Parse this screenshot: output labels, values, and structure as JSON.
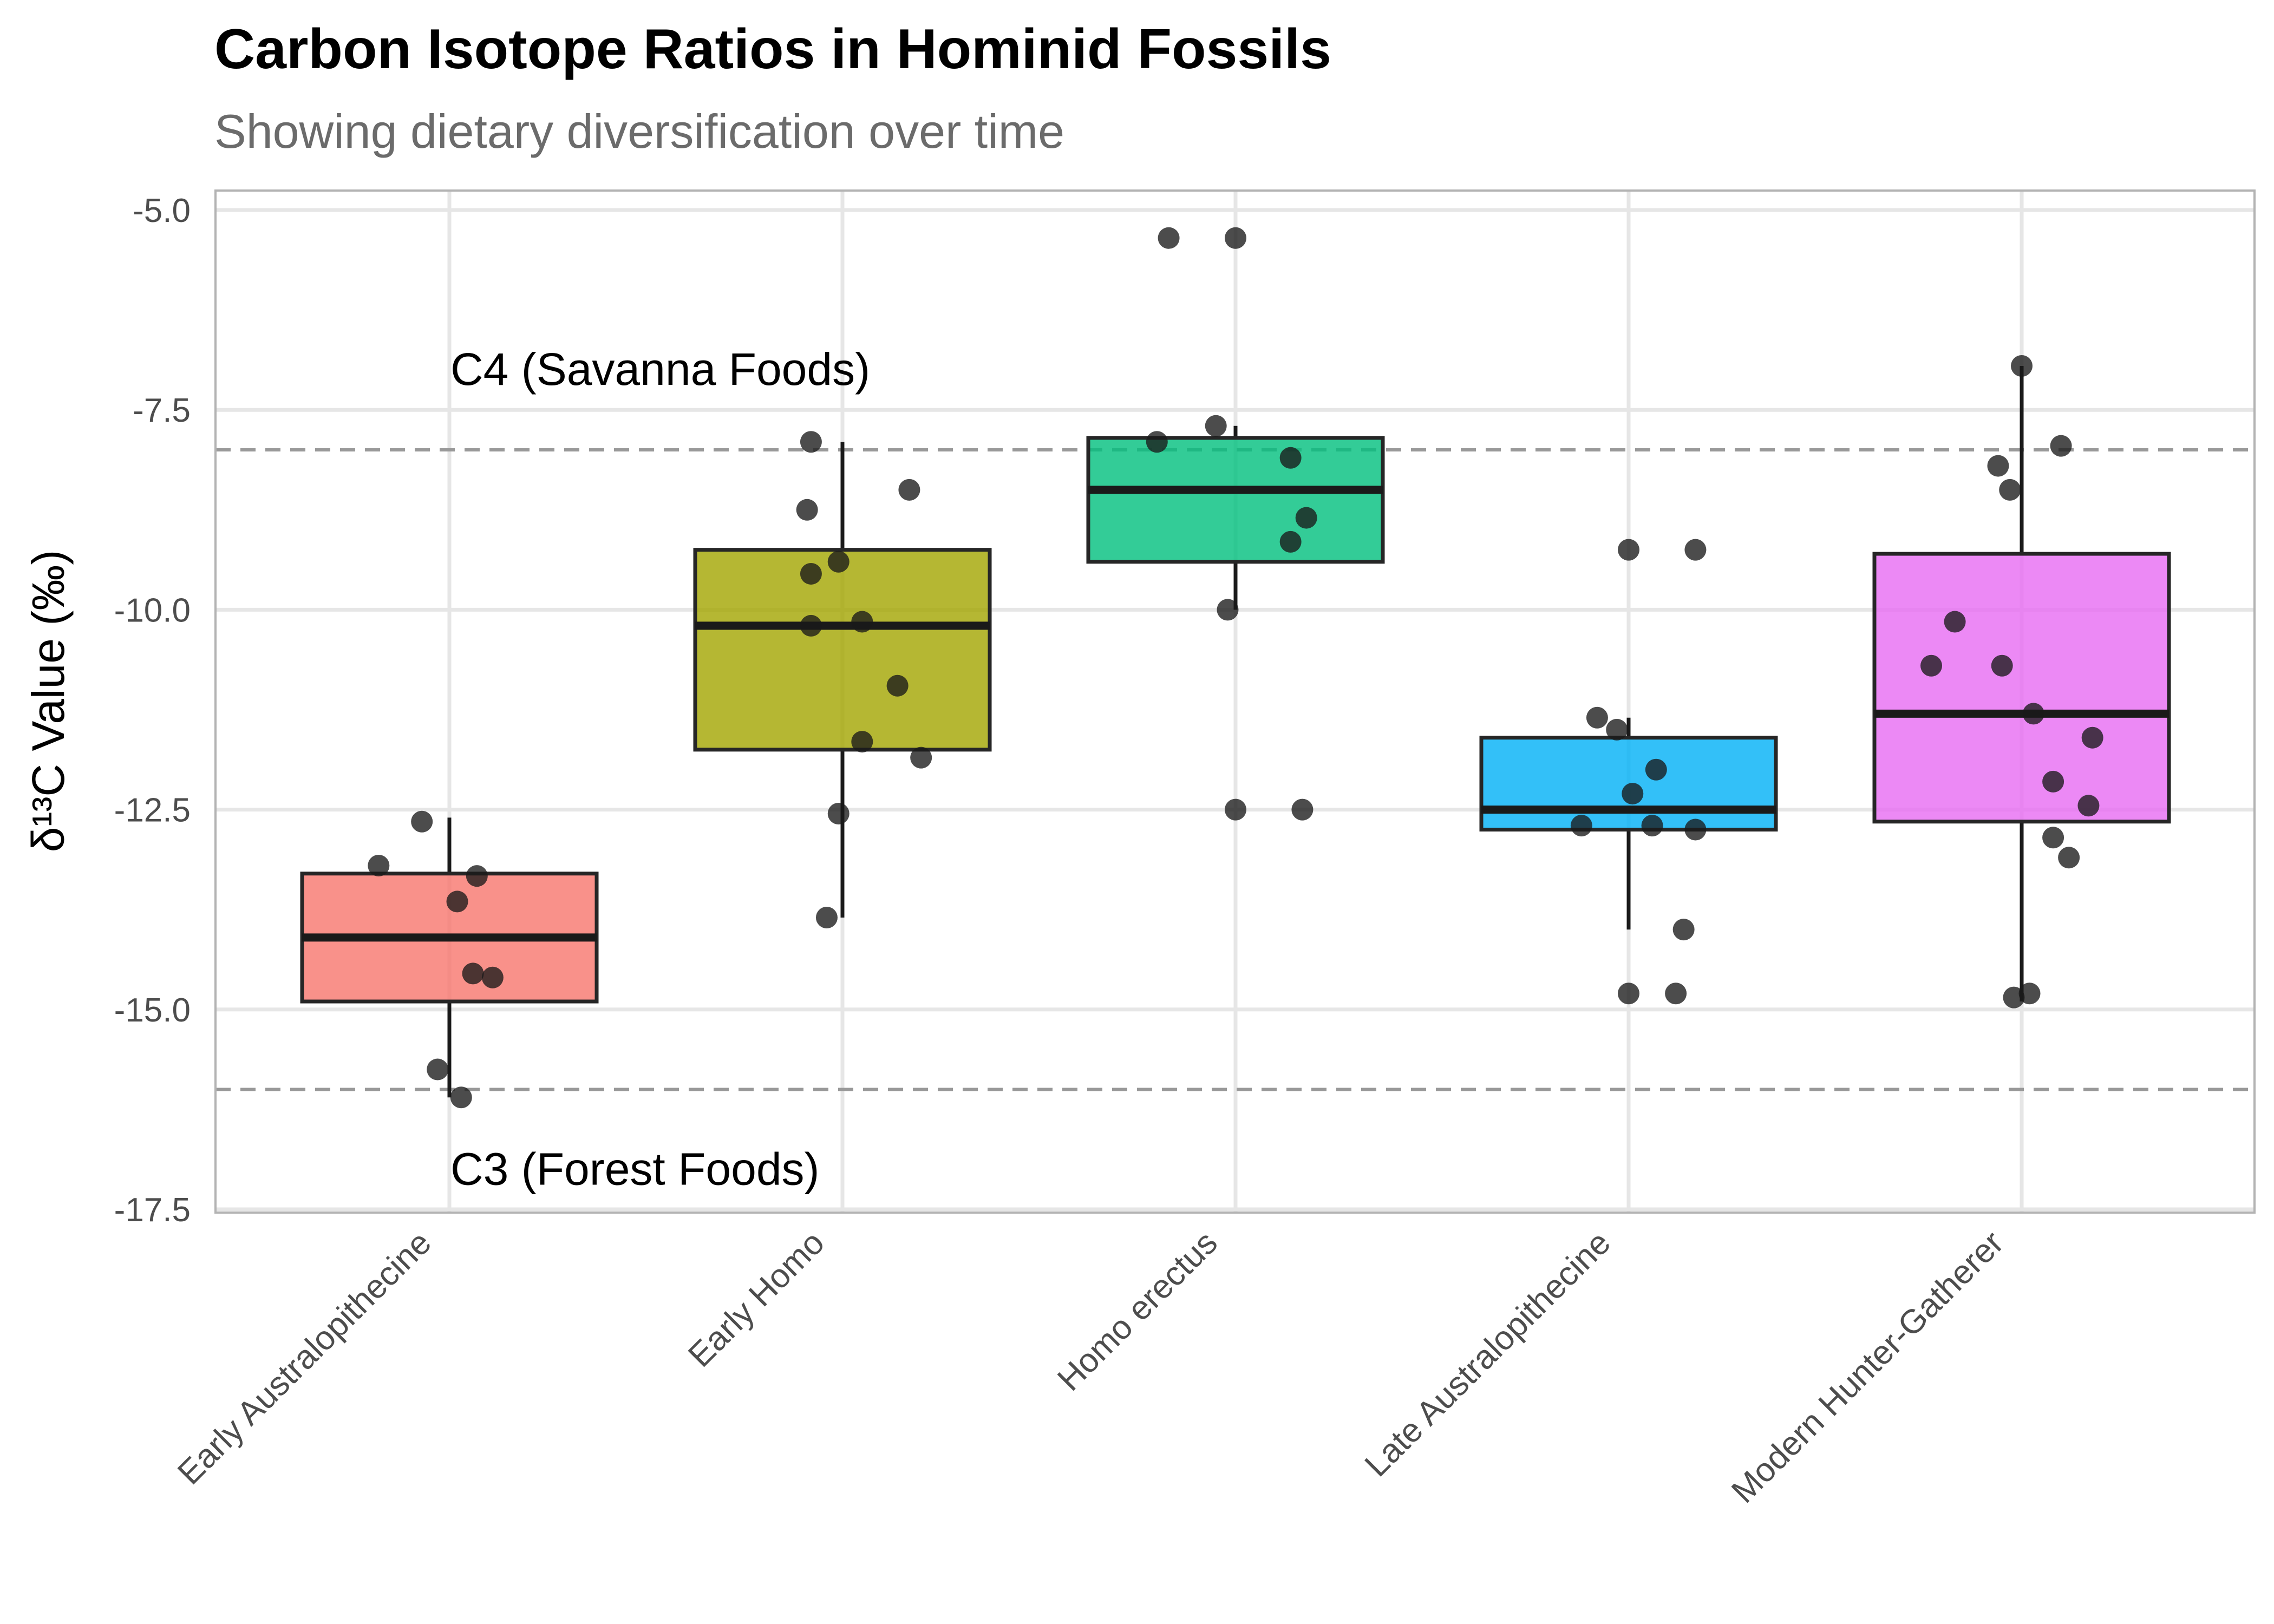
{
  "chart_data": {
    "type": "box",
    "title": "Carbon Isotope Ratios in Hominid Fossils",
    "subtitle": "Showing dietary diversification over time",
    "xlabel": "",
    "ylabel": "δ¹³C Value (‰)",
    "ylim": [
      -17.5,
      -5.0
    ],
    "yticks": [
      -5.0,
      -7.5,
      -10.0,
      -12.5,
      -15.0,
      -17.5
    ],
    "ytick_labels": [
      "-5.0",
      "-7.5",
      "-10.0",
      "-12.5",
      "-15.0",
      "-17.5"
    ],
    "grid": true,
    "reference_lines": [
      {
        "label": "C4 (Savanna Foods)",
        "y": -8.0,
        "style": "dashed"
      },
      {
        "label": "C3 (Forest Foods)",
        "y": -16.0,
        "style": "dashed"
      }
    ],
    "categories": [
      "Early Australopithecine",
      "Early Homo",
      "Homo erectus",
      "Late Australopithecine",
      "Modern Hunter-Gatherer"
    ],
    "series": [
      {
        "category": "Early Australopithecine",
        "color": "#F8766D",
        "q1": -14.9,
        "median": -14.1,
        "q3": -13.3,
        "whisker_low": -16.1,
        "whisker_high": -12.6,
        "points": [
          {
            "x": -0.07,
            "y": -12.65
          },
          {
            "x": -0.18,
            "y": -13.2
          },
          {
            "x": 0.07,
            "y": -13.33
          },
          {
            "x": 0.02,
            "y": -13.65
          },
          {
            "x": 0.06,
            "y": -14.55
          },
          {
            "x": 0.11,
            "y": -14.6
          },
          {
            "x": -0.03,
            "y": -15.75
          },
          {
            "x": 0.03,
            "y": -16.1
          }
        ]
      },
      {
        "category": "Early Homo",
        "color": "#A3A500",
        "q1": -11.75,
        "median": -10.2,
        "q3": -9.25,
        "whisker_low": -13.85,
        "whisker_high": -7.9,
        "points": [
          {
            "x": -0.08,
            "y": -7.9
          },
          {
            "x": 0.17,
            "y": -8.5
          },
          {
            "x": -0.09,
            "y": -8.75
          },
          {
            "x": -0.01,
            "y": -9.4
          },
          {
            "x": -0.08,
            "y": -9.55
          },
          {
            "x": -0.08,
            "y": -10.2
          },
          {
            "x": 0.05,
            "y": -10.15
          },
          {
            "x": 0.14,
            "y": -10.95
          },
          {
            "x": 0.05,
            "y": -11.65
          },
          {
            "x": 0.2,
            "y": -11.85
          },
          {
            "x": -0.01,
            "y": -12.55
          },
          {
            "x": -0.04,
            "y": -13.85
          }
        ]
      },
      {
        "category": "Homo erectus",
        "color": "#00BF7D",
        "q1": -9.4,
        "median": -8.5,
        "q3": -7.85,
        "whisker_low": -10.0,
        "whisker_high": -7.7,
        "points": [
          {
            "x": -0.17,
            "y": -5.35
          },
          {
            "x": 0.0,
            "y": -5.35
          },
          {
            "x": -0.2,
            "y": -7.9
          },
          {
            "x": -0.05,
            "y": -7.7
          },
          {
            "x": 0.14,
            "y": -8.1
          },
          {
            "x": 0.18,
            "y": -8.85
          },
          {
            "x": 0.14,
            "y": -9.15
          },
          {
            "x": -0.02,
            "y": -10.0
          },
          {
            "x": 0.0,
            "y": -12.5
          },
          {
            "x": 0.17,
            "y": -12.5
          }
        ]
      },
      {
        "category": "Late Australopithecine",
        "color": "#00B0F6",
        "q1": -12.75,
        "median": -12.5,
        "q3": -11.6,
        "whisker_low": -14.0,
        "whisker_high": -11.35,
        "points": [
          {
            "x": 0.0,
            "y": -9.25
          },
          {
            "x": 0.17,
            "y": -9.25
          },
          {
            "x": -0.08,
            "y": -11.35
          },
          {
            "x": -0.03,
            "y": -11.5
          },
          {
            "x": 0.07,
            "y": -12.0
          },
          {
            "x": 0.01,
            "y": -12.3
          },
          {
            "x": -0.12,
            "y": -12.7
          },
          {
            "x": 0.06,
            "y": -12.7
          },
          {
            "x": 0.17,
            "y": -12.75
          },
          {
            "x": 0.14,
            "y": -14.0
          },
          {
            "x": 0.0,
            "y": -14.8
          },
          {
            "x": 0.12,
            "y": -14.8
          }
        ]
      },
      {
        "category": "Modern Hunter-Gatherer",
        "color": "#E76BF3",
        "q1": -12.65,
        "median": -11.3,
        "q3": -9.3,
        "whisker_low": -14.9,
        "whisker_high": -6.95,
        "points": [
          {
            "x": 0.0,
            "y": -6.95
          },
          {
            "x": -0.06,
            "y": -8.2
          },
          {
            "x": -0.03,
            "y": -8.5
          },
          {
            "x": 0.1,
            "y": -7.95
          },
          {
            "x": -0.17,
            "y": -10.15
          },
          {
            "x": -0.23,
            "y": -10.7
          },
          {
            "x": -0.05,
            "y": -10.7
          },
          {
            "x": 0.03,
            "y": -11.3
          },
          {
            "x": 0.18,
            "y": -11.6
          },
          {
            "x": 0.08,
            "y": -12.15
          },
          {
            "x": 0.17,
            "y": -12.45
          },
          {
            "x": 0.08,
            "y": -12.85
          },
          {
            "x": 0.12,
            "y": -13.1
          },
          {
            "x": -0.02,
            "y": -14.85
          },
          {
            "x": 0.02,
            "y": -14.8
          }
        ]
      }
    ]
  }
}
